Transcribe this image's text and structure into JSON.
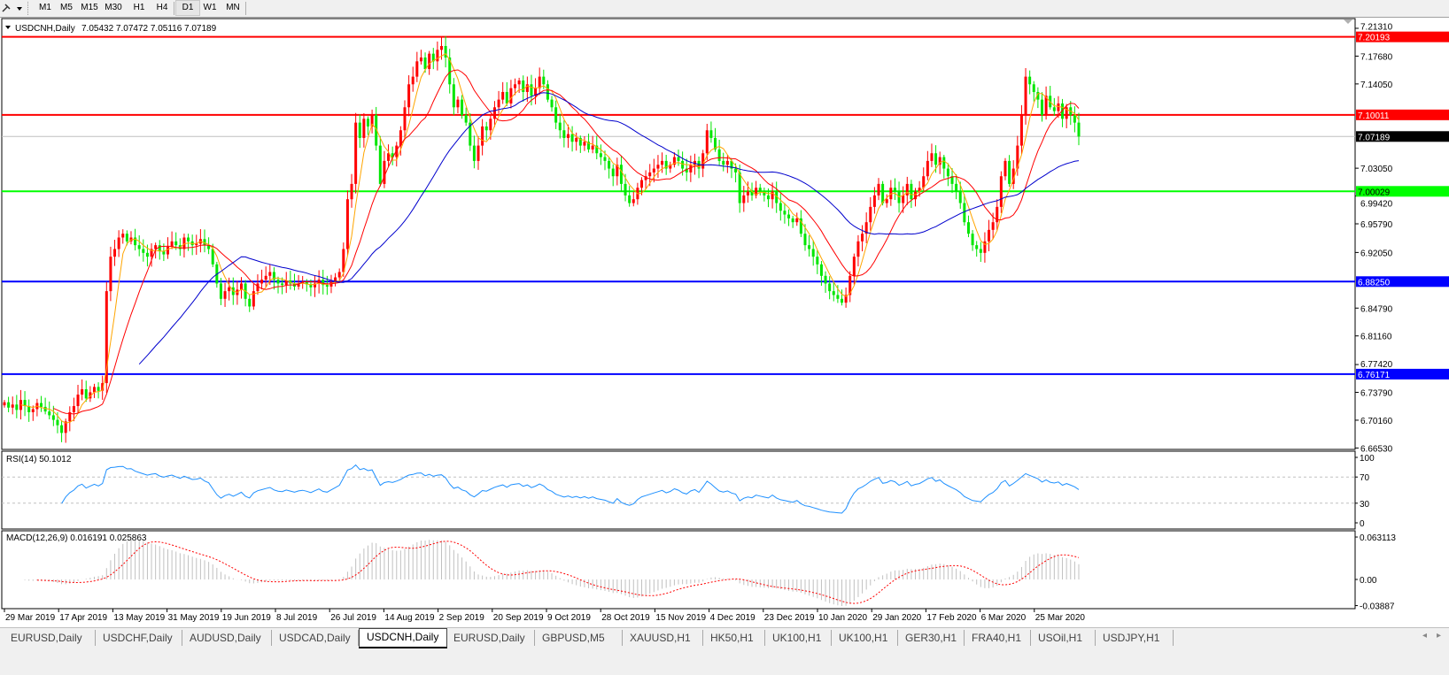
{
  "toolbar": {
    "tool_icon": "crosshair-pencil-icon",
    "timeframes": [
      "M1",
      "M5",
      "M15",
      "M30",
      "H1",
      "H4",
      "D1",
      "W1",
      "MN"
    ],
    "active_timeframe": "D1"
  },
  "chart": {
    "symbol_label": "USDCNH,Daily",
    "ohlc_label": "7.05432 7.07472 7.05116 7.07189",
    "candle_up_color": "#ff0000",
    "candle_down_color": "#00e600",
    "ma_colors": [
      "#ffa500",
      "#ff0000",
      "#0000cd"
    ],
    "rsi_label": "RSI(14) 50.1012",
    "rsi_color": "#1e90ff",
    "macd_label": "MACD(12,26,9) 0.016191 0.025863",
    "macd_hist_color": "#c0c0c0",
    "macd_signal_color": "#ff0000"
  },
  "chart_data": {
    "type": "candlestick",
    "symbol": "USDCNH",
    "timeframe": "Daily",
    "last": {
      "open": 7.05432,
      "high": 7.07472,
      "low": 7.05116,
      "close": 7.07189
    },
    "ylim": [
      6.6653,
      7.2131
    ],
    "y_ticks": [
      "7.21310",
      "7.17680",
      "7.14050",
      "7.03050",
      "6.99420",
      "6.95790",
      "6.92050",
      "6.84790",
      "6.81160",
      "6.77420",
      "6.73790",
      "6.70160",
      "6.66530"
    ],
    "x_ticks": [
      "29 Mar 2019",
      "17 Apr 2019",
      "13 May 2019",
      "31 May 2019",
      "19 Jun 2019",
      "8 Jul 2019",
      "26 Jul 2019",
      "14 Aug 2019",
      "2 Sep 2019",
      "20 Sep 2019",
      "9 Oct 2019",
      "28 Oct 2019",
      "15 Nov 2019",
      "4 Dec 2019",
      "23 Dec 2019",
      "10 Jan 2020",
      "29 Jan 2020",
      "17 Feb 2020",
      "6 Mar 2020",
      "25 Mar 2020"
    ],
    "levels": [
      {
        "value": 7.20193,
        "label": "7.20193",
        "color": "#ff0000"
      },
      {
        "value": 7.10011,
        "label": "7.10011",
        "color": "#ff0000"
      },
      {
        "value": 7.00029,
        "label": "7.00029",
        "color": "#00ff00"
      },
      {
        "value": 6.8825,
        "label": "6.88250",
        "color": "#0000ff"
      },
      {
        "value": 6.76171,
        "label": "6.76171",
        "color": "#0000ff"
      }
    ],
    "current_price": {
      "value": 7.07189,
      "label": "7.07189"
    },
    "closes": [
      6.725,
      6.718,
      6.722,
      6.715,
      6.728,
      6.72,
      6.712,
      6.716,
      6.724,
      6.719,
      6.713,
      6.708,
      6.702,
      6.695,
      6.685,
      6.7,
      6.712,
      6.72,
      6.735,
      6.742,
      6.73,
      6.738,
      6.745,
      6.74,
      6.75,
      6.87,
      6.915,
      6.925,
      6.94,
      6.945,
      6.935,
      6.94,
      6.93,
      6.925,
      6.92,
      6.915,
      6.925,
      6.93,
      6.922,
      6.918,
      6.928,
      6.935,
      6.93,
      6.925,
      6.94,
      6.935,
      6.93,
      6.932,
      6.938,
      6.93,
      6.925,
      6.905,
      6.88,
      6.86,
      6.87,
      6.875,
      6.865,
      6.872,
      6.88,
      6.86,
      6.85,
      6.87,
      6.88,
      6.885,
      6.89,
      6.895,
      6.885,
      6.88,
      6.878,
      6.884,
      6.88,
      6.876,
      6.88,
      6.882,
      6.879,
      6.875,
      6.88,
      6.885,
      6.878,
      6.876,
      6.882,
      6.888,
      6.895,
      6.925,
      6.99,
      7.01,
      7.09,
      7.07,
      7.095,
      7.085,
      7.1,
      7.06,
      7.01,
      7.04,
      7.05,
      7.045,
      7.06,
      7.08,
      7.11,
      7.14,
      7.15,
      7.17,
      7.175,
      7.16,
      7.18,
      7.17,
      7.185,
      7.19,
      7.175,
      7.14,
      7.11,
      7.12,
      7.1,
      7.09,
      7.06,
      7.04,
      7.06,
      7.085,
      7.08,
      7.095,
      7.11,
      7.12,
      7.13,
      7.115,
      7.135,
      7.14,
      7.145,
      7.13,
      7.14,
      7.125,
      7.135,
      7.15,
      7.14,
      7.12,
      7.11,
      7.09,
      7.08,
      7.07,
      7.075,
      7.065,
      7.07,
      7.06,
      7.065,
      7.055,
      7.06,
      7.05,
      7.045,
      7.04,
      7.03,
      7.02,
      7.035,
      7.01,
      6.995,
      6.985,
      6.99,
      7.005,
      7.015,
      7.02,
      7.025,
      7.03,
      7.035,
      7.04,
      7.03,
      7.035,
      7.045,
      7.04,
      7.03,
      7.025,
      7.035,
      7.04,
      7.03,
      7.05,
      7.08,
      7.07,
      7.055,
      7.04,
      7.035,
      7.04,
      7.03,
      7.025,
      6.985,
      6.995,
      7.0,
      6.995,
      7.005,
      7.0,
      6.995,
      6.99,
      7.0,
      6.985,
      6.975,
      6.97,
      6.965,
      6.96,
      6.965,
      6.945,
      6.93,
      6.925,
      6.915,
      6.905,
      6.89,
      6.88,
      6.87,
      6.865,
      6.86,
      6.855,
      6.865,
      6.89,
      6.915,
      6.935,
      6.945,
      6.96,
      6.98,
      6.995,
      7.01,
      6.985,
      6.99,
      7.005,
      7.0,
      6.985,
      6.995,
      7.01,
      6.99,
      7.0,
      7.005,
      7.02,
      7.04,
      7.05,
      7.035,
      7.045,
      7.03,
      7.02,
      7.01,
      7.0,
      6.985,
      6.96,
      6.945,
      6.93,
      6.925,
      6.92,
      6.935,
      6.95,
      6.96,
      6.98,
      7.02,
      7.04,
      7.01,
      7.03,
      7.06,
      7.1,
      7.15,
      7.14,
      7.13,
      7.12,
      7.1,
      7.125,
      7.11,
      7.105,
      7.115,
      7.095,
      7.11,
      7.1,
      7.09,
      7.07189
    ],
    "rsi": {
      "period": 14,
      "last": 50.1012,
      "ylim": [
        0,
        100
      ],
      "levels": [
        70,
        30
      ],
      "y_ticks": [
        "100",
        "70",
        "30",
        "0"
      ]
    },
    "macd": {
      "fast": 12,
      "slow": 26,
      "signal": 9,
      "main_last": 0.016191,
      "signal_last": 0.025863,
      "ylim": [
        -0.03887,
        0.063113
      ],
      "y_ticks": [
        "0.063113",
        "0.00",
        "-0.03887"
      ]
    }
  },
  "tabs": {
    "items": [
      "EURUSD,Daily",
      "USDCHF,Daily",
      "AUDUSD,Daily",
      "USDCAD,Daily",
      "USDCNH,Daily",
      "EURUSD,Daily",
      "GBPUSD,M5",
      "XAUUSD,H1",
      "HK50,H1",
      "UK100,H1",
      "UK100,H1",
      "GER30,H1",
      "FRA40,H1",
      "USOil,H1",
      "USDJPY,H1"
    ],
    "active_index": 4,
    "scroll_left": "◂",
    "scroll_right": "▸"
  }
}
